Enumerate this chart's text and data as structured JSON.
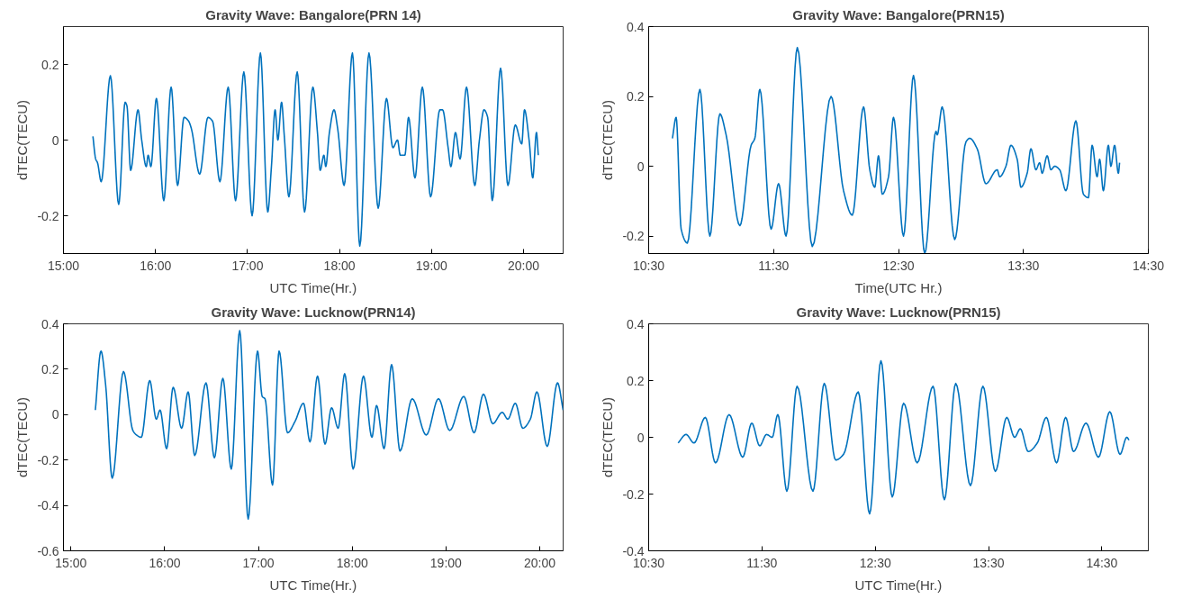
{
  "chart_data": [
    {
      "type": "line",
      "title": "Gravity Wave: Bangalore(PRN 14)",
      "xlabel": "UTC Time(Hr.)",
      "ylabel": "dTEC(TECU)",
      "xlim": [
        15,
        20.43
      ],
      "ylim": [
        -0.3,
        0.3
      ],
      "xticks": [
        {
          "value": 15,
          "label": "15:00"
        },
        {
          "value": 16,
          "label": "16:00"
        },
        {
          "value": 17,
          "label": "17:00"
        },
        {
          "value": 18,
          "label": "18:00"
        },
        {
          "value": 19,
          "label": "19:00"
        },
        {
          "value": 20,
          "label": "20:00"
        }
      ],
      "yticks": [
        -0.2,
        0,
        0.2
      ],
      "x": [
        15.32,
        15.35,
        15.37,
        15.41,
        15.51,
        15.6,
        15.67,
        15.69,
        15.73,
        15.81,
        15.85,
        15.9,
        15.92,
        15.95,
        16.01,
        16.09,
        16.17,
        16.24,
        16.31,
        16.36,
        16.39,
        16.48,
        16.57,
        16.62,
        16.7,
        16.79,
        16.87,
        16.96,
        17.05,
        17.14,
        17.22,
        17.26,
        17.3,
        17.33,
        17.37,
        17.4,
        17.45,
        17.54,
        17.62,
        17.71,
        17.76,
        17.79,
        17.83,
        17.85,
        17.89,
        17.94,
        17.98,
        18.05,
        18.14,
        18.22,
        18.32,
        18.42,
        18.51,
        18.58,
        18.63,
        18.66,
        18.71,
        18.75,
        18.82,
        18.9,
        18.99,
        19.09,
        19.12,
        19.18,
        19.21,
        19.26,
        19.31,
        19.38,
        19.47,
        19.52,
        19.57,
        19.61,
        19.66,
        19.75,
        19.83,
        19.91,
        19.98,
        20.01,
        20.06,
        20.1,
        20.14,
        20.16
      ],
      "series": [
        {
          "color": "#0072bd",
          "values": [
            0.01,
            -0.05,
            -0.06,
            -0.11,
            0.17,
            -0.17,
            0.1,
            0.09,
            -0.08,
            0.08,
            0,
            -0.07,
            -0.04,
            -0.07,
            0.11,
            -0.16,
            0.14,
            -0.12,
            0.06,
            0.05,
            0.03,
            -0.09,
            0.06,
            0.05,
            -0.11,
            0.14,
            -0.16,
            0.18,
            -0.2,
            0.23,
            -0.19,
            -0.07,
            0.08,
            0,
            0.1,
            0.01,
            -0.15,
            0.18,
            -0.19,
            0.14,
            0.02,
            -0.08,
            -0.04,
            -0.07,
            0.02,
            0.08,
            0.03,
            -0.12,
            0.23,
            -0.28,
            0.23,
            -0.18,
            0.11,
            -0.02,
            0,
            -0.04,
            -0.04,
            0.06,
            -0.1,
            0.14,
            -0.15,
            0.08,
            0.08,
            -0.02,
            -0.07,
            0.02,
            -0.05,
            0.14,
            -0.12,
            0,
            0.08,
            0.06,
            -0.16,
            0.19,
            -0.12,
            0.04,
            -0.01,
            0.08,
            0,
            -0.1,
            0.02,
            -0.04
          ]
        }
      ]
    },
    {
      "type": "line",
      "title": "Gravity Wave: Bangalore(PRN15)",
      "xlabel": "Time(UTC Hr.)",
      "ylabel": "dTEC(TECU)",
      "xlim": [
        10.5,
        14.5
      ],
      "ylim": [
        -0.25,
        0.4
      ],
      "xticks": [
        {
          "value": 10.5,
          "label": "10:30"
        },
        {
          "value": 11.5,
          "label": "11:30"
        },
        {
          "value": 12.5,
          "label": "12:30"
        },
        {
          "value": 13.5,
          "label": "13:30"
        },
        {
          "value": 14.5,
          "label": "14:30"
        }
      ],
      "yticks": [
        -0.2,
        0,
        0.2,
        0.4
      ],
      "x": [
        10.69,
        10.72,
        10.76,
        10.81,
        10.91,
        10.99,
        11.07,
        11.12,
        11.23,
        11.32,
        11.35,
        11.39,
        11.48,
        11.54,
        11.6,
        11.69,
        11.81,
        11.96,
        12.06,
        12.13,
        12.22,
        12.27,
        12.31,
        12.34,
        12.37,
        12.42,
        12.46,
        12.54,
        12.62,
        12.71,
        12.8,
        12.81,
        12.85,
        12.95,
        13.04,
        13.07,
        13.13,
        13.2,
        13.29,
        13.31,
        13.36,
        13.4,
        13.45,
        13.48,
        13.53,
        13.56,
        13.6,
        13.63,
        13.65,
        13.69,
        13.72,
        13.75,
        13.79,
        13.84,
        13.92,
        13.98,
        14.02,
        14.05,
        14.09,
        14.11,
        14.14,
        14.18,
        14.2,
        14.23,
        14.26,
        14.27
      ],
      "series": [
        {
          "color": "#0072bd",
          "values": [
            0.08,
            0.14,
            -0.18,
            -0.22,
            0.22,
            -0.2,
            0.15,
            0.09,
            -0.17,
            0.06,
            0.08,
            0.22,
            -0.18,
            -0.05,
            -0.2,
            0.34,
            -0.23,
            0.2,
            -0.07,
            -0.14,
            0.17,
            -0.01,
            -0.06,
            0.03,
            -0.08,
            -0.03,
            0.14,
            -0.2,
            0.26,
            -0.25,
            0.1,
            0.09,
            0.17,
            -0.21,
            0.07,
            0.08,
            0.05,
            -0.05,
            -0.01,
            -0.03,
            0,
            0.06,
            0.02,
            -0.06,
            -0.02,
            0.05,
            -0.01,
            0.01,
            -0.02,
            0.03,
            -0.01,
            0,
            -0.01,
            -0.07,
            0.13,
            -0.08,
            -0.09,
            0.06,
            -0.03,
            0.02,
            -0.07,
            0.06,
            0,
            0.06,
            -0.02,
            0.01
          ]
        }
      ]
    },
    {
      "type": "line",
      "title": "Gravity Wave: Lucknow(PRN14)",
      "xlabel": "UTC Time(Hr.)",
      "ylabel": "dTEC(TECU)",
      "xlim": [
        14.92,
        20.25
      ],
      "ylim": [
        -0.6,
        0.4
      ],
      "xticks": [
        {
          "value": 15,
          "label": "15:00"
        },
        {
          "value": 16,
          "label": "16:00"
        },
        {
          "value": 17,
          "label": "17:00"
        },
        {
          "value": 18,
          "label": "18:00"
        },
        {
          "value": 19,
          "label": "19:00"
        },
        {
          "value": 20,
          "label": "20:00"
        }
      ],
      "yticks": [
        -0.6,
        -0.4,
        -0.2,
        0,
        0.2,
        0.4
      ],
      "x": [
        15.26,
        15.32,
        15.37,
        15.44,
        15.56,
        15.66,
        15.7,
        15.75,
        15.84,
        15.91,
        15.95,
        16.02,
        16.09,
        16.18,
        16.25,
        16.32,
        16.44,
        16.53,
        16.62,
        16.71,
        16.8,
        16.89,
        16.99,
        17.04,
        17.07,
        17.15,
        17.22,
        17.31,
        17.39,
        17.48,
        17.55,
        17.63,
        17.71,
        17.78,
        17.85,
        17.92,
        18.01,
        18.12,
        18.21,
        18.26,
        18.34,
        18.42,
        18.51,
        18.64,
        18.79,
        18.92,
        19.04,
        19.19,
        19.3,
        19.4,
        19.5,
        19.6,
        19.66,
        19.74,
        19.82,
        19.9,
        19.97,
        20.08,
        20.19,
        20.25
      ],
      "series": [
        {
          "color": "#0072bd",
          "values": [
            0.02,
            0.28,
            0.13,
            -0.28,
            0.19,
            -0.07,
            -0.09,
            -0.1,
            0.15,
            -0.02,
            0.02,
            -0.15,
            0.12,
            -0.06,
            0.1,
            -0.18,
            0.14,
            -0.19,
            0.16,
            -0.24,
            0.37,
            -0.46,
            0.28,
            0.08,
            0.07,
            -0.31,
            0.28,
            -0.08,
            -0.03,
            0.05,
            -0.12,
            0.17,
            -0.13,
            0.03,
            -0.06,
            0.18,
            -0.24,
            0.17,
            -0.1,
            0.04,
            -0.15,
            0.22,
            -0.16,
            0.07,
            -0.09,
            0.07,
            -0.07,
            0.08,
            -0.08,
            0.09,
            -0.04,
            0.01,
            -0.02,
            0.05,
            -0.06,
            -0.02,
            0.1,
            -0.14,
            0.14,
            0.02
          ]
        }
      ]
    },
    {
      "type": "line",
      "title": "Gravity Wave: Lucknow(PRN15)",
      "xlabel": "UTC Time(Hr.)",
      "ylabel": "dTEC(TECU)",
      "xlim": [
        10.5,
        14.91
      ],
      "ylim": [
        -0.4,
        0.4
      ],
      "xticks": [
        {
          "value": 10.5,
          "label": "10:30"
        },
        {
          "value": 11.5,
          "label": "11:30"
        },
        {
          "value": 12.5,
          "label": "12:30"
        },
        {
          "value": 13.5,
          "label": "13:30"
        },
        {
          "value": 14.5,
          "label": "14:30"
        }
      ],
      "yticks": [
        -0.4,
        -0.2,
        0,
        0.2,
        0.4
      ],
      "x": [
        10.76,
        10.83,
        10.9,
        11.0,
        11.09,
        11.21,
        11.33,
        11.41,
        11.48,
        11.54,
        11.59,
        11.64,
        11.72,
        11.81,
        11.95,
        12.05,
        12.15,
        12.22,
        12.35,
        12.45,
        12.55,
        12.65,
        12.75,
        12.87,
        13.01,
        13.11,
        13.21,
        13.34,
        13.45,
        13.56,
        13.66,
        13.73,
        13.78,
        13.85,
        13.93,
        14.01,
        14.1,
        14.18,
        14.25,
        14.36,
        14.47,
        14.57,
        14.66,
        14.72,
        14.74
      ],
      "series": [
        {
          "color": "#0072bd",
          "values": [
            -0.02,
            0.01,
            -0.02,
            0.07,
            -0.09,
            0.08,
            -0.07,
            0.05,
            -0.03,
            0.01,
            0,
            0.08,
            -0.19,
            0.18,
            -0.19,
            0.19,
            -0.08,
            -0.06,
            0.16,
            -0.27,
            0.27,
            -0.21,
            0.12,
            -0.09,
            0.18,
            -0.22,
            0.19,
            -0.17,
            0.18,
            -0.12,
            0.07,
            0,
            0.03,
            -0.05,
            -0.02,
            0.07,
            -0.09,
            0.07,
            -0.05,
            0.05,
            -0.07,
            0.09,
            -0.06,
            0,
            -0.01
          ]
        }
      ]
    }
  ]
}
